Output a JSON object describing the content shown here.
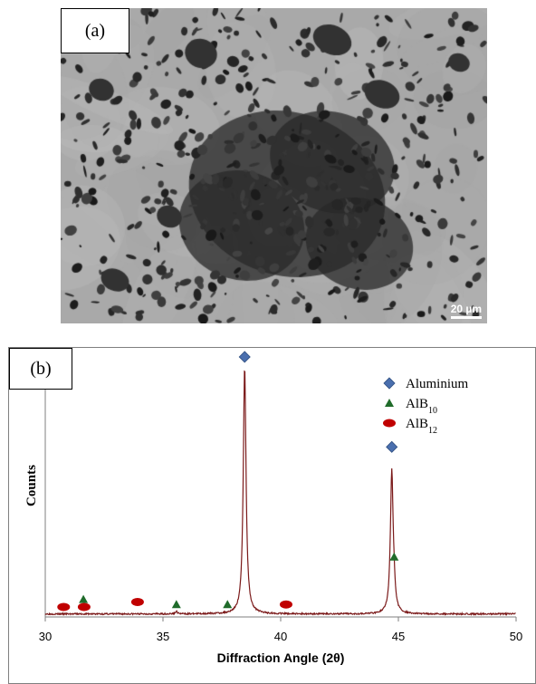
{
  "panel_a": {
    "label": "(a)",
    "scale_bar": "20 µm"
  },
  "panel_b": {
    "label": "(b)"
  },
  "colors": {
    "trace": "#7b1a1a",
    "aluminium": "#4a6fae",
    "alb10": "#1f6b2a",
    "alb12": "#c00000"
  },
  "chart_data": {
    "type": "line",
    "title": "",
    "xlabel": "Diffraction Angle (2θ)",
    "ylabel": "Counts",
    "xlim": [
      30,
      50
    ],
    "xticks": [
      "30",
      "35",
      "40",
      "45",
      "50"
    ],
    "y_ticks_shown": false,
    "legend_position": "top-right",
    "legend": [
      {
        "name": "Aluminium",
        "sub": "",
        "marker": "diamond"
      },
      {
        "name": "AlB",
        "sub": "10",
        "marker": "triangle"
      },
      {
        "name": "AlB",
        "sub": "12",
        "marker": "ellipse"
      }
    ],
    "peaks": [
      {
        "x": 38.47,
        "height": 0.99,
        "width": 0.07
      },
      {
        "x": 44.72,
        "height": 0.57,
        "width": 0.07
      },
      {
        "x": 35.57,
        "height": 0.01,
        "width": 0.05
      },
      {
        "x": 44.82,
        "height": 0.05,
        "width": 0.05
      }
    ],
    "markers": {
      "aluminium": [
        {
          "x": 38.47,
          "y": 1.04
        },
        {
          "x": 44.72,
          "y": 0.68
        }
      ],
      "alb10": [
        {
          "x": 31.62,
          "y": 0.07
        },
        {
          "x": 35.57,
          "y": 0.05
        },
        {
          "x": 37.74,
          "y": 0.05
        },
        {
          "x": 44.82,
          "y": 0.24
        }
      ],
      "alb12": [
        {
          "x": 30.78,
          "y": 0.04
        },
        {
          "x": 31.65,
          "y": 0.04
        },
        {
          "x": 33.92,
          "y": 0.06
        },
        {
          "x": 40.23,
          "y": 0.05
        }
      ]
    }
  }
}
